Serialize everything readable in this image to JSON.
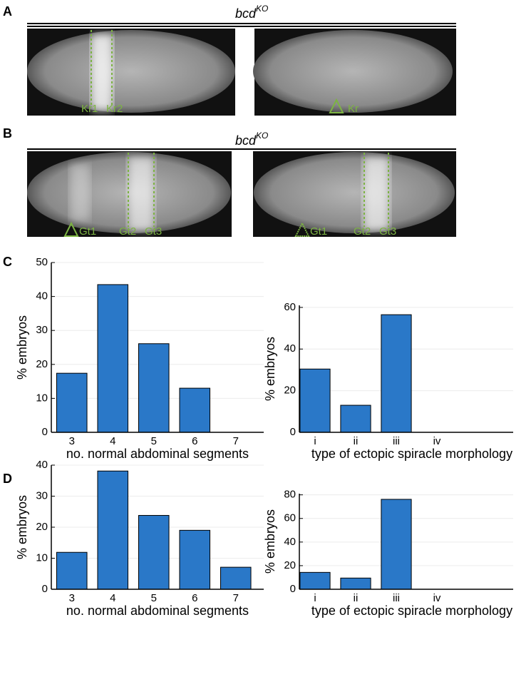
{
  "panel_labels": [
    "A",
    "B",
    "C",
    "D"
  ],
  "images": {
    "a": {
      "title": "bcd",
      "title_sup": "KO",
      "left_labels": [
        "Kr1",
        "Kr2"
      ],
      "right_labels": [
        "Kr"
      ]
    },
    "b": {
      "title": "bcd",
      "title_sup": "KO",
      "left_labels": [
        "Gt1",
        "Gt2",
        "Gt3"
      ],
      "right_labels": [
        "Gt1",
        "Gt2",
        "Gt3"
      ]
    }
  },
  "chart_data": [
    {
      "type": "bar",
      "categories": [
        "3",
        "4",
        "5",
        "6",
        "7"
      ],
      "values": [
        17.4,
        43.5,
        26.1,
        13.0,
        0
      ],
      "color": "#2a78c8",
      "xlabel": "no. normal abdominal segments",
      "ylabel": "% embryos",
      "ylim": [
        0,
        50
      ],
      "yticks": [
        0,
        10,
        20,
        30,
        40,
        50
      ],
      "grid": true
    },
    {
      "type": "bar",
      "categories": [
        "i",
        "ii",
        "iii",
        "iv"
      ],
      "values": [
        30.4,
        13.0,
        56.5,
        0
      ],
      "color": "#2a78c8",
      "xlabel": "type of ectopic spiracle morphology",
      "ylabel": "% embryos",
      "ylim": [
        0,
        61
      ],
      "yticks": [
        0,
        20,
        40,
        60
      ],
      "grid": true
    },
    {
      "type": "bar",
      "categories": [
        "3",
        "4",
        "5",
        "6",
        "7"
      ],
      "values": [
        11.9,
        38.1,
        23.8,
        19.0,
        7.1
      ],
      "color": "#2a78c8",
      "xlabel": "no. normal abdominal segments",
      "ylabel": "% embryos",
      "ylim": [
        0,
        40
      ],
      "yticks": [
        0,
        10,
        20,
        30,
        40
      ],
      "grid": true
    },
    {
      "type": "bar",
      "categories": [
        "i",
        "ii",
        "iii",
        "iv"
      ],
      "values": [
        14.3,
        9.5,
        76.2,
        0
      ],
      "color": "#2a78c8",
      "xlabel": "type of ectopic spiracle morphology",
      "ylabel": "% embryos",
      "ylim": [
        0,
        81
      ],
      "yticks": [
        0,
        20,
        40,
        60,
        80
      ],
      "grid": true
    }
  ]
}
